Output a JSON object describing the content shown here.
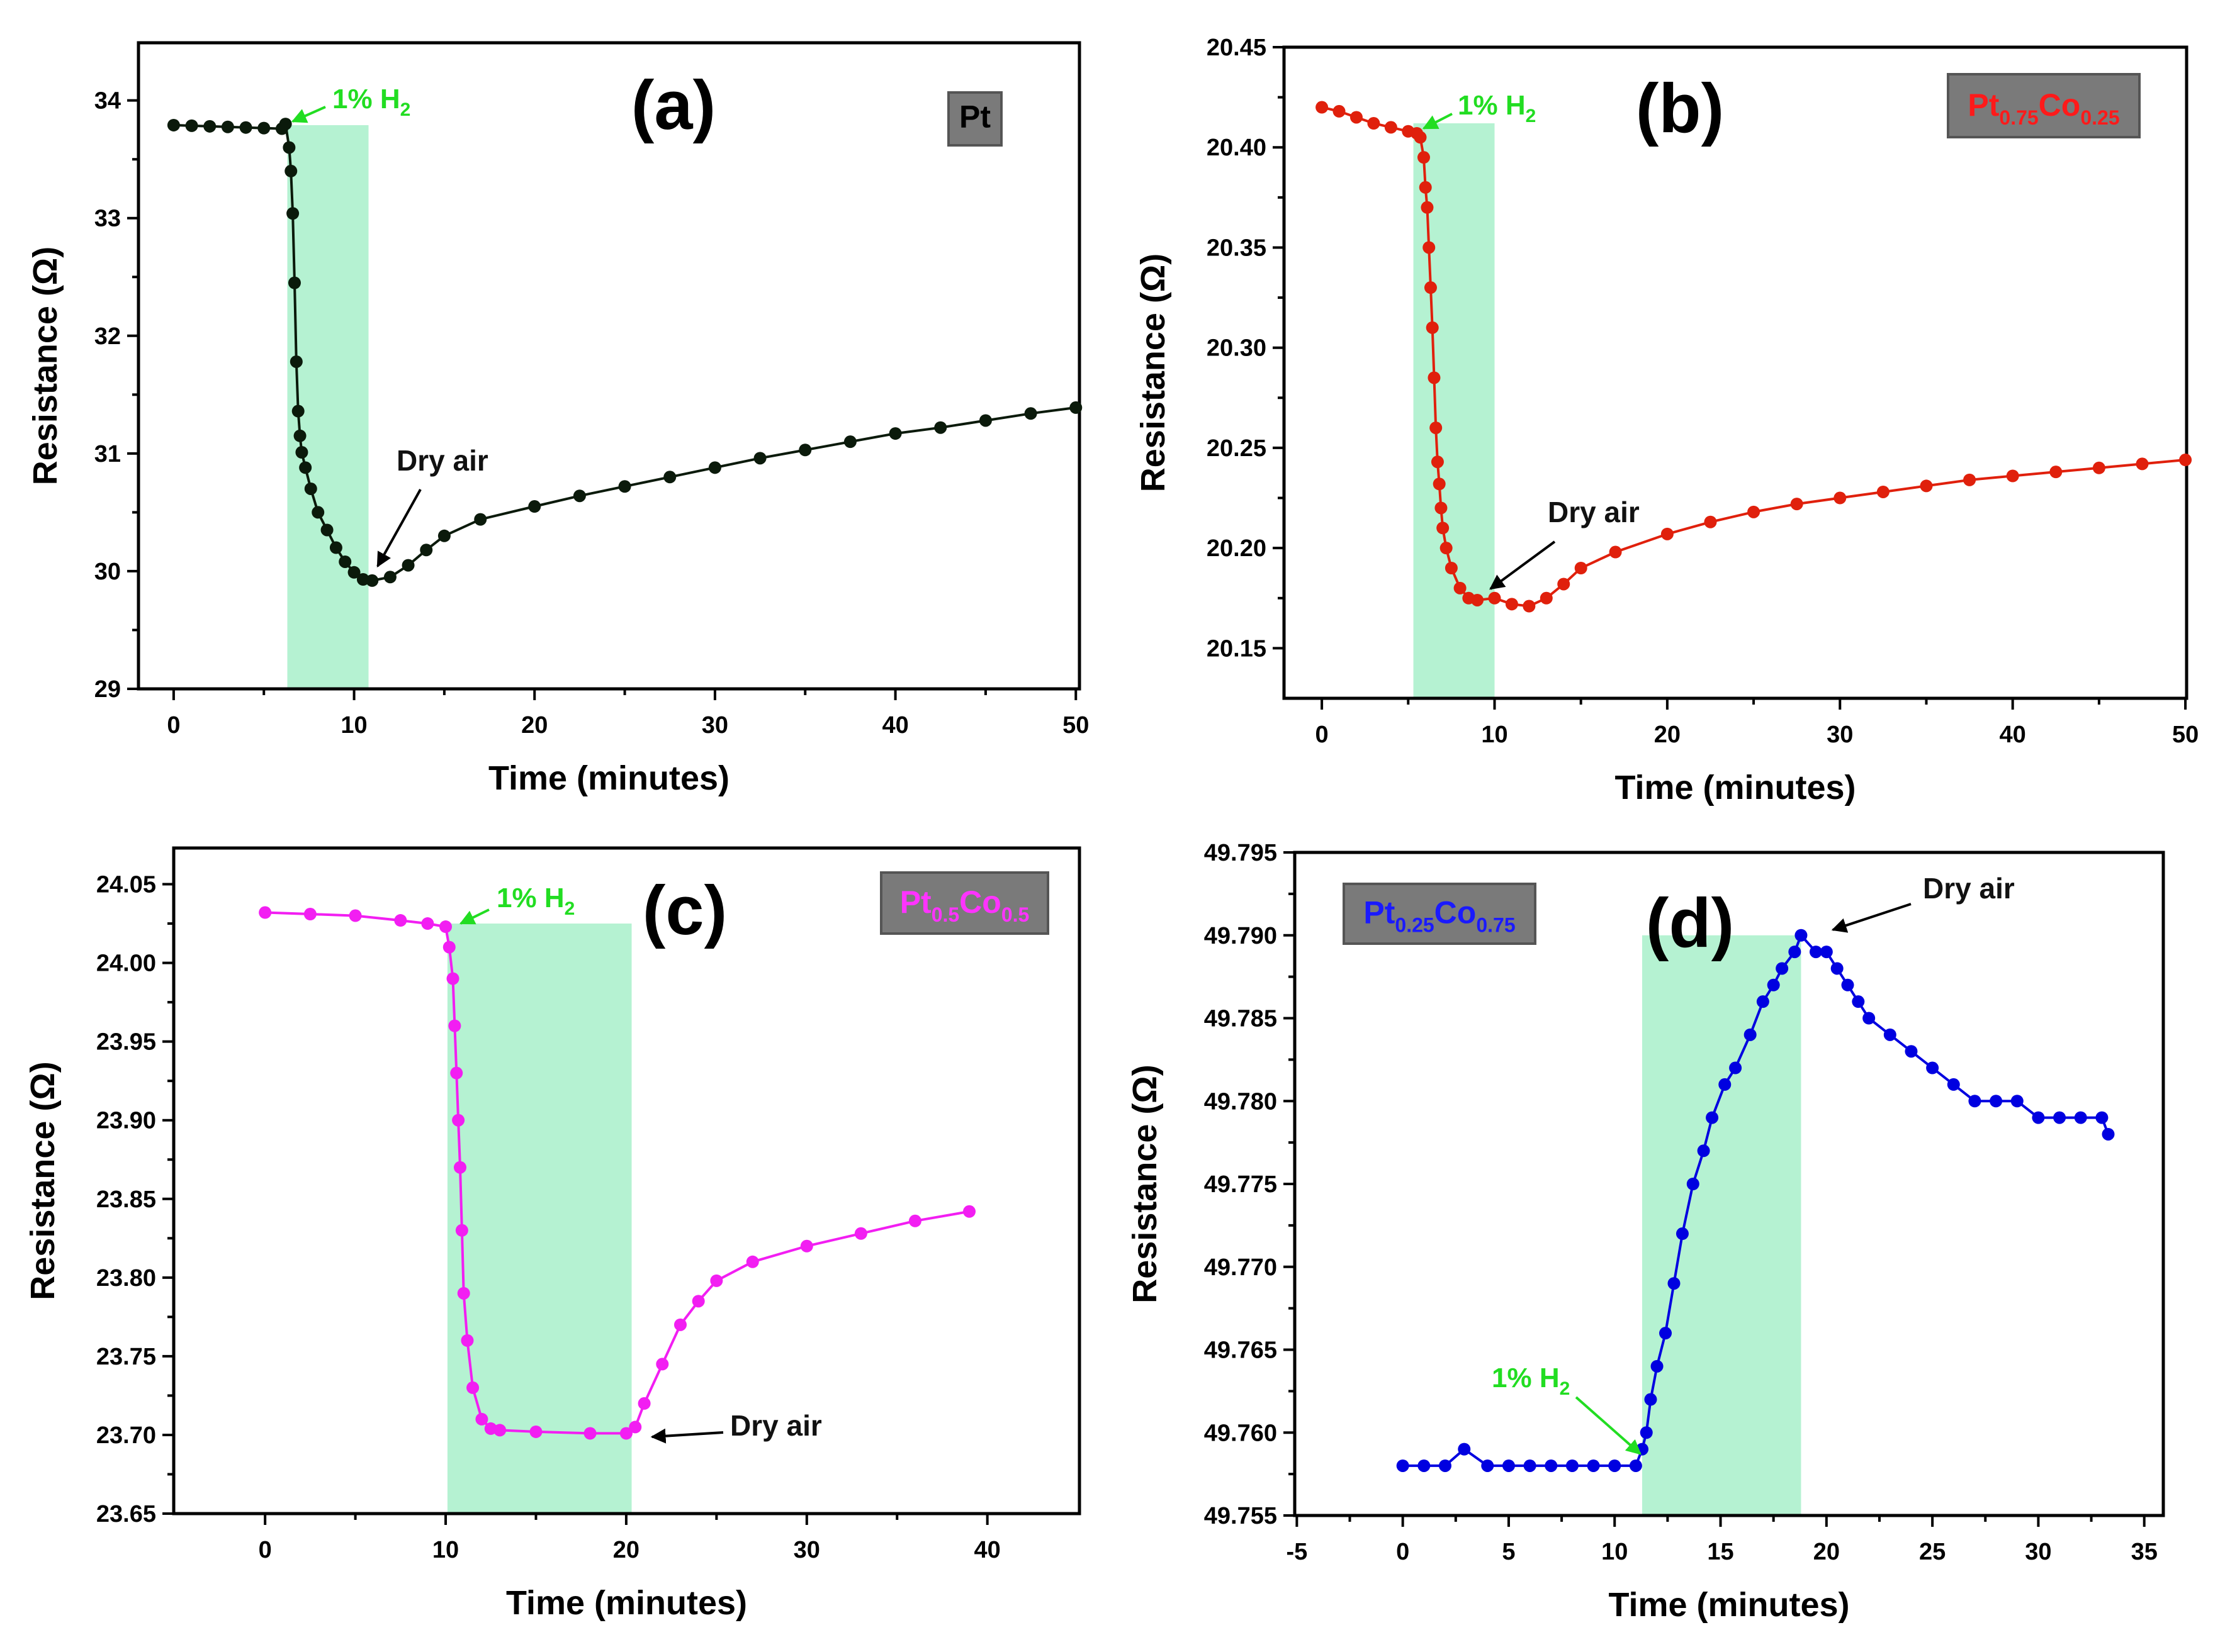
{
  "chart_data": [
    {
      "type": "scatter",
      "panel_label": "(a)",
      "sample_label": {
        "parts": [
          {
            "t": "Pt",
            "sub": false
          }
        ]
      },
      "sample_color": "#000000",
      "series_color": "#0b1a0b",
      "xlabel": "Time (minutes)",
      "ylabel": "Resistance (Ω)",
      "xlim": [
        -1.95,
        50.2
      ],
      "ylim": [
        29,
        34.49
      ],
      "xticks": [
        0,
        10,
        20,
        30,
        40,
        50
      ],
      "yticks": [
        29,
        30,
        31,
        32,
        33,
        34
      ],
      "ytick_decimals": 0,
      "h2_label": "1% H",
      "h2_sub": "2",
      "dry_air_label": "Dry air",
      "h2_region": {
        "x": [
          6.3,
          10.8
        ],
        "ytop": 33.79
      },
      "points": [
        [
          0,
          33.79
        ],
        [
          1,
          33.785
        ],
        [
          2,
          33.78
        ],
        [
          3,
          33.775
        ],
        [
          4,
          33.77
        ],
        [
          5,
          33.765
        ],
        [
          6,
          33.76
        ],
        [
          6.2,
          33.8
        ],
        [
          6.4,
          33.6
        ],
        [
          6.5,
          33.4
        ],
        [
          6.6,
          33.04
        ],
        [
          6.7,
          32.45
        ],
        [
          6.8,
          31.78
        ],
        [
          6.9,
          31.36
        ],
        [
          7,
          31.15
        ],
        [
          7.1,
          31.01
        ],
        [
          7.3,
          30.88
        ],
        [
          7.6,
          30.7
        ],
        [
          8,
          30.5
        ],
        [
          8.5,
          30.35
        ],
        [
          9,
          30.2
        ],
        [
          9.5,
          30.08
        ],
        [
          10,
          29.99
        ],
        [
          10.5,
          29.93
        ],
        [
          11,
          29.92
        ],
        [
          12,
          29.95
        ],
        [
          13,
          30.05
        ],
        [
          14,
          30.18
        ],
        [
          15,
          30.3
        ],
        [
          17,
          30.44
        ],
        [
          20,
          30.55
        ],
        [
          22.5,
          30.64
        ],
        [
          25,
          30.72
        ],
        [
          27.5,
          30.8
        ],
        [
          30,
          30.88
        ],
        [
          32.5,
          30.96
        ],
        [
          35,
          31.03
        ],
        [
          37.5,
          31.1
        ],
        [
          40,
          31.17
        ],
        [
          42.5,
          31.22
        ],
        [
          45,
          31.28
        ],
        [
          47.5,
          31.34
        ],
        [
          50,
          31.39
        ]
      ]
    },
    {
      "type": "scatter",
      "panel_label": "(b)",
      "sample_label": {
        "parts": [
          {
            "t": "Pt",
            "sub": false
          },
          {
            "t": "0.75",
            "sub": true
          },
          {
            "t": "Co",
            "sub": false
          },
          {
            "t": "0.25",
            "sub": true
          }
        ]
      },
      "sample_color": "#ff1a1a",
      "series_color": "#e0200c",
      "xlabel": "Time (minutes)",
      "ylabel": "Resistance (Ω)",
      "xlim": [
        -2.19,
        50.07
      ],
      "ylim": [
        20.125,
        20.45
      ],
      "xticks": [
        0,
        10,
        20,
        30,
        40,
        50
      ],
      "yticks": [
        20.15,
        20.2,
        20.25,
        20.3,
        20.35,
        20.4,
        20.45
      ],
      "ytick_decimals": 2,
      "h2_label": "1% H",
      "h2_sub": "2",
      "dry_air_label": "Dry air",
      "h2_region": {
        "x": [
          5.3,
          10
        ],
        "ytop": 20.412
      },
      "points": [
        [
          0,
          20.42
        ],
        [
          1,
          20.418
        ],
        [
          2,
          20.415
        ],
        [
          3,
          20.412
        ],
        [
          4,
          20.41
        ],
        [
          5,
          20.408
        ],
        [
          5.5,
          20.407
        ],
        [
          5.7,
          20.405
        ],
        [
          5.9,
          20.395
        ],
        [
          6,
          20.38
        ],
        [
          6.1,
          20.37
        ],
        [
          6.2,
          20.35
        ],
        [
          6.3,
          20.33
        ],
        [
          6.4,
          20.31
        ],
        [
          6.5,
          20.285
        ],
        [
          6.6,
          20.26
        ],
        [
          6.7,
          20.243
        ],
        [
          6.8,
          20.232
        ],
        [
          6.9,
          20.22
        ],
        [
          7,
          20.21
        ],
        [
          7.2,
          20.2
        ],
        [
          7.5,
          20.19
        ],
        [
          8,
          20.18
        ],
        [
          8.5,
          20.175
        ],
        [
          9,
          20.174
        ],
        [
          10,
          20.175
        ],
        [
          11,
          20.172
        ],
        [
          12,
          20.171
        ],
        [
          13,
          20.175
        ],
        [
          14,
          20.182
        ],
        [
          15,
          20.19
        ],
        [
          17,
          20.198
        ],
        [
          20,
          20.207
        ],
        [
          22.5,
          20.213
        ],
        [
          25,
          20.218
        ],
        [
          27.5,
          20.222
        ],
        [
          30,
          20.225
        ],
        [
          32.5,
          20.228
        ],
        [
          35,
          20.231
        ],
        [
          37.5,
          20.234
        ],
        [
          40,
          20.236
        ],
        [
          42.5,
          20.238
        ],
        [
          45,
          20.24
        ],
        [
          47.5,
          20.242
        ],
        [
          50,
          20.244
        ]
      ]
    },
    {
      "type": "scatter",
      "panel_label": "(c)",
      "sample_label": {
        "parts": [
          {
            "t": "Pt",
            "sub": false
          },
          {
            "t": "0.5",
            "sub": true
          },
          {
            "t": "Co",
            "sub": false
          },
          {
            "t": "0.5",
            "sub": true
          }
        ]
      },
      "sample_color": "#ff33ff",
      "series_color": "#f21ef2",
      "xlabel": "Time (minutes)",
      "ylabel": "Resistance (Ω)",
      "xlim": [
        -5.06,
        45.1
      ],
      "ylim": [
        23.65,
        24.073
      ],
      "xticks": [
        0,
        10,
        20,
        30,
        40
      ],
      "yticks": [
        23.65,
        23.7,
        23.75,
        23.8,
        23.85,
        23.9,
        23.95,
        24.0,
        24.05
      ],
      "ytick_decimals": 2,
      "h2_label": "1% H",
      "h2_sub": "2",
      "dry_air_label": "Dry air",
      "h2_region": {
        "x": [
          10.1,
          20.3
        ],
        "ytop": 24.025
      },
      "points": [
        [
          0,
          24.032
        ],
        [
          2.5,
          24.031
        ],
        [
          5,
          24.03
        ],
        [
          7.5,
          24.027
        ],
        [
          9,
          24.025
        ],
        [
          10,
          24.023
        ],
        [
          10.2,
          24.01
        ],
        [
          10.4,
          23.99
        ],
        [
          10.5,
          23.96
        ],
        [
          10.6,
          23.93
        ],
        [
          10.7,
          23.9
        ],
        [
          10.8,
          23.87
        ],
        [
          10.9,
          23.83
        ],
        [
          11,
          23.79
        ],
        [
          11.2,
          23.76
        ],
        [
          11.5,
          23.73
        ],
        [
          12,
          23.71
        ],
        [
          12.5,
          23.704
        ],
        [
          13,
          23.703
        ],
        [
          15,
          23.702
        ],
        [
          18,
          23.701
        ],
        [
          20,
          23.701
        ],
        [
          20.5,
          23.705
        ],
        [
          21,
          23.72
        ],
        [
          22,
          23.745
        ],
        [
          23,
          23.77
        ],
        [
          24,
          23.785
        ],
        [
          25,
          23.798
        ],
        [
          27,
          23.81
        ],
        [
          30,
          23.82
        ],
        [
          33,
          23.828
        ],
        [
          36,
          23.836
        ],
        [
          39,
          23.842
        ]
      ]
    },
    {
      "type": "scatter",
      "panel_label": "(d)",
      "sample_label": {
        "parts": [
          {
            "t": "Pt",
            "sub": false
          },
          {
            "t": "0.25",
            "sub": true
          },
          {
            "t": "Co",
            "sub": false
          },
          {
            "t": "0.75",
            "sub": true
          }
        ]
      },
      "sample_color": "#1a1aff",
      "series_color": "#0000e0",
      "xlabel": "Time (minutes)",
      "ylabel": "Resistance (Ω)",
      "xlim": [
        -5.1,
        35.9
      ],
      "ylim": [
        49.755,
        49.795
      ],
      "xticks": [
        -5,
        0,
        5,
        10,
        15,
        20,
        25,
        30,
        35
      ],
      "yticks": [
        49.755,
        49.76,
        49.765,
        49.77,
        49.775,
        49.78,
        49.785,
        49.79,
        49.795
      ],
      "ytick_decimals": 3,
      "h2_label": "1% H",
      "h2_sub": "2",
      "dry_air_label": "Dry air",
      "h2_region": {
        "x": [
          11.3,
          18.8
        ],
        "ytop": 49.79
      },
      "points": [
        [
          0,
          49.758
        ],
        [
          1,
          49.758
        ],
        [
          2,
          49.758
        ],
        [
          2.9,
          49.759
        ],
        [
          4,
          49.758
        ],
        [
          5,
          49.758
        ],
        [
          6,
          49.758
        ],
        [
          7,
          49.758
        ],
        [
          8,
          49.758
        ],
        [
          9,
          49.758
        ],
        [
          10,
          49.758
        ],
        [
          11,
          49.758
        ],
        [
          11.3,
          49.759
        ],
        [
          11.5,
          49.76
        ],
        [
          11.7,
          49.762
        ],
        [
          12,
          49.764
        ],
        [
          12.4,
          49.766
        ],
        [
          12.8,
          49.769
        ],
        [
          13.2,
          49.772
        ],
        [
          13.7,
          49.775
        ],
        [
          14.2,
          49.777
        ],
        [
          14.6,
          49.779
        ],
        [
          15.2,
          49.781
        ],
        [
          15.7,
          49.782
        ],
        [
          16.4,
          49.784
        ],
        [
          17,
          49.786
        ],
        [
          17.5,
          49.787
        ],
        [
          17.9,
          49.788
        ],
        [
          18.5,
          49.789
        ],
        [
          18.8,
          49.79
        ],
        [
          19.5,
          49.789
        ],
        [
          20,
          49.789
        ],
        [
          20.5,
          49.788
        ],
        [
          21,
          49.787
        ],
        [
          21.5,
          49.786
        ],
        [
          22,
          49.785
        ],
        [
          23,
          49.784
        ],
        [
          24,
          49.783
        ],
        [
          25,
          49.782
        ],
        [
          26,
          49.781
        ],
        [
          27,
          49.78
        ],
        [
          28,
          49.78
        ],
        [
          29,
          49.78
        ],
        [
          30,
          49.779
        ],
        [
          31,
          49.779
        ],
        [
          32,
          49.779
        ],
        [
          33,
          49.779
        ],
        [
          33.3,
          49.778
        ]
      ]
    }
  ]
}
